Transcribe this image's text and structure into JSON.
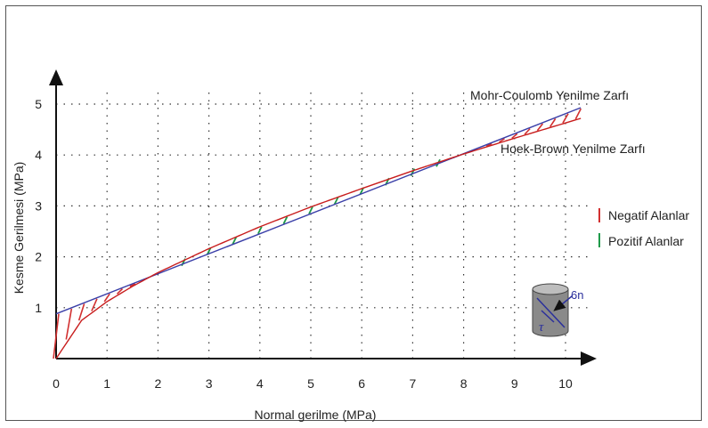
{
  "chart_data": {
    "type": "line",
    "xlabel": "Normal gerilme (MPa)",
    "ylabel": "Kesme Gerilmesi (MPa)",
    "xlim": [
      0,
      10.5
    ],
    "ylim": [
      0,
      5.3
    ],
    "x_ticks": [
      "0",
      "1",
      "2",
      "3",
      "4",
      "5",
      "6",
      "7",
      "8",
      "9",
      "10"
    ],
    "y_ticks": [
      "1",
      "2",
      "3",
      "4",
      "5"
    ],
    "grid": true,
    "series": [
      {
        "name": "Mohr-Coulomb Yenilme Zarfı",
        "kind": "linear",
        "x": [
          0,
          10.3
        ],
        "y": [
          0.88,
          4.93
        ],
        "color": "#3a3fa8"
      },
      {
        "name": "Hoek-Brown Yenilme Zarfı",
        "kind": "curve",
        "x": [
          0,
          0.5,
          1,
          1.5,
          2,
          3,
          4,
          5,
          6,
          7,
          8,
          9,
          10,
          10.3
        ],
        "y": [
          0.0,
          0.75,
          1.12,
          1.42,
          1.69,
          2.16,
          2.59,
          2.98,
          3.34,
          3.69,
          4.02,
          4.33,
          4.63,
          4.72
        ],
        "color": "#c81d1d"
      }
    ],
    "legend": {
      "position": "right",
      "items": [
        {
          "label": "Negatif Alanlar",
          "color": "#d23030"
        },
        {
          "label": "Pozitif Alanlar",
          "color": "#1f9a4a"
        }
      ]
    },
    "annotations": {
      "sigma_n_symbol": "6n",
      "tau_symbol": "τ"
    },
    "hatch": {
      "negative_color": "#d23030",
      "positive_color": "#1f9a4a",
      "negative_x": [
        0,
        0.25,
        0.5,
        0.75,
        1.0,
        1.25,
        1.5,
        8.5,
        8.75,
        9.0,
        9.25,
        9.5,
        9.75,
        10.0,
        10.25
      ],
      "positive_x": [
        2.5,
        3.0,
        3.5,
        4.0,
        4.5,
        5.0,
        5.5,
        6.0,
        6.5,
        7.0,
        7.5
      ]
    }
  }
}
